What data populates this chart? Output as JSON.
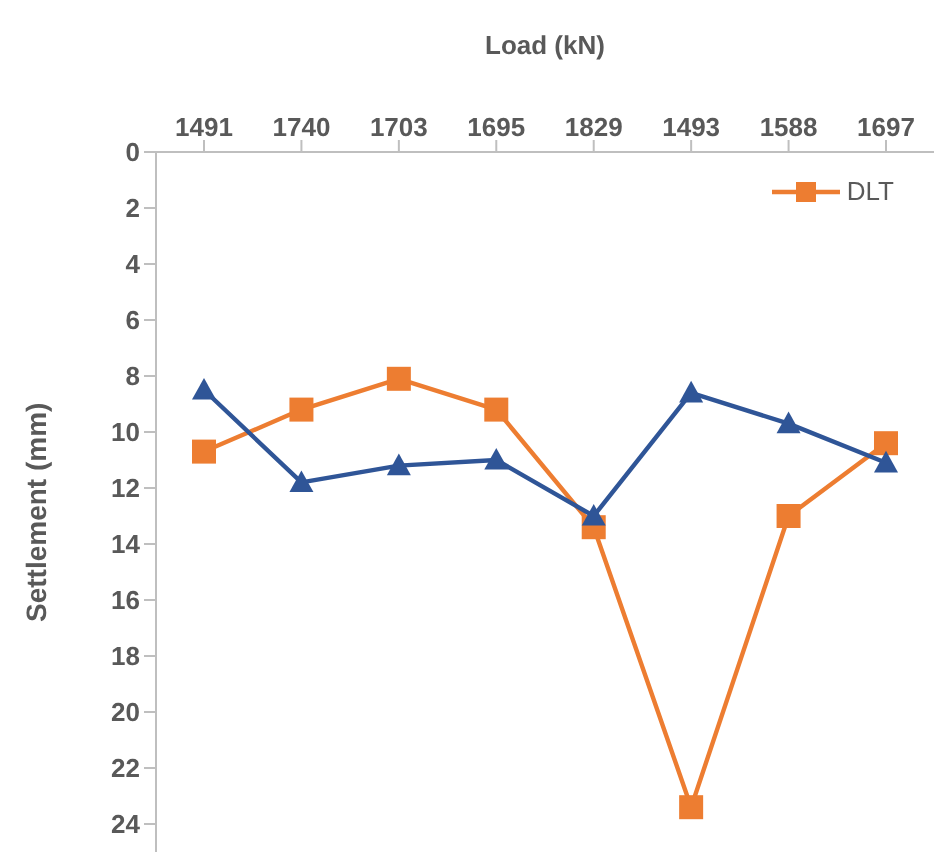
{
  "chart_data": {
    "type": "line",
    "xlabel": "Load (kN)",
    "ylabel": "Settlement (mm)",
    "categories": [
      "1491",
      "1740",
      "1703",
      "1695",
      "1829",
      "1493",
      "1588",
      "1697"
    ],
    "series": [
      {
        "color": "#2f5597",
        "marker": "triangle",
        "values": [
          8.5,
          11.8,
          11.2,
          11.0,
          13.0,
          8.6,
          9.7,
          11.1
        ]
      },
      {
        "name": "DLT",
        "color": "#ed7d31",
        "marker": "square",
        "values": [
          10.7,
          9.2,
          8.1,
          9.2,
          13.4,
          23.4,
          13.0,
          10.4
        ]
      }
    ],
    "ylim": [
      25,
      0
    ],
    "yticks": [
      0,
      2,
      4,
      6,
      8,
      10,
      12,
      14,
      16,
      18,
      20,
      22,
      24
    ],
    "grid": false,
    "legend": "top right",
    "line_style": "solid"
  }
}
